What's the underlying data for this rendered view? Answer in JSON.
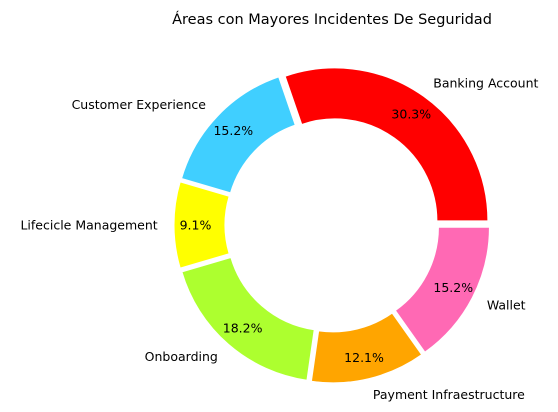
{
  "chart_data": {
    "type": "pie",
    "style": "donut",
    "title": "Áreas con Mayores Incidentes De Seguridad",
    "categories": [
      "Banking Account",
      "Customer Experience",
      "Lifecicle Management",
      "Onboarding",
      "Payment Infraestructure",
      "Wallet"
    ],
    "values": [
      30.3,
      15.2,
      9.1,
      18.2,
      12.1,
      15.2
    ],
    "value_labels": [
      "30.3%",
      "15.2%",
      "9.1%",
      "18.2%",
      "12.1%",
      "15.2%"
    ],
    "colors": [
      "#ff0000",
      "#40cfff",
      "#ffff00",
      "#adff2f",
      "#ffa500",
      "#ff69b4"
    ],
    "start_angle": 0,
    "direction": "counterclockwise",
    "legend": "none"
  }
}
